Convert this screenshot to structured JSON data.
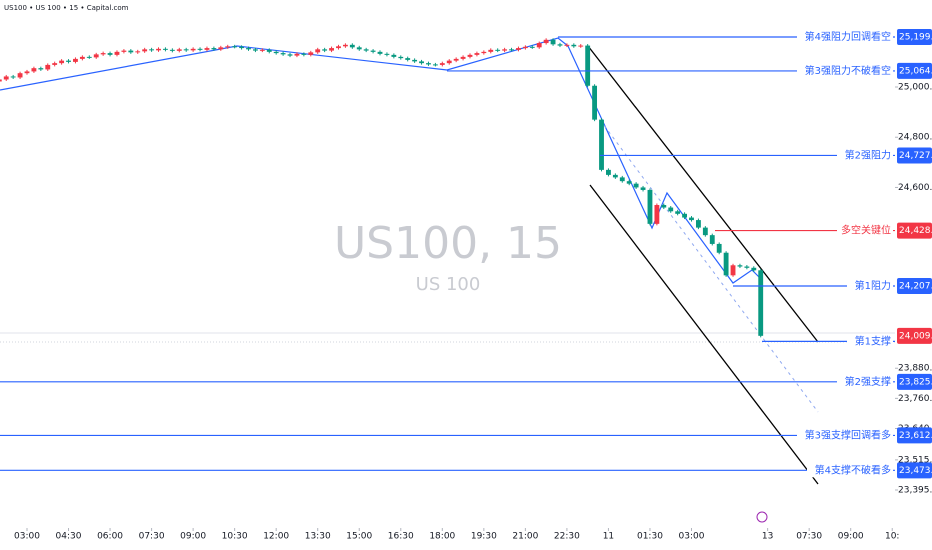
{
  "header": "US100 • US 100 • 15 • Capital.com",
  "chart_data": {
    "type": "candlestick",
    "watermark": "US100, 15",
    "watermark_subtitle": "US 100",
    "up_color": "#f23645",
    "down_color": "#089981",
    "open": [
      25022,
      25030,
      25042,
      25038,
      25055,
      25062,
      25075,
      25070,
      25088,
      25095,
      25105,
      25100,
      25112,
      25120,
      25118,
      25130,
      25135,
      25128,
      25140,
      25145,
      25138,
      25142,
      25150,
      25146,
      25152,
      25148,
      25144,
      25150,
      25146,
      25152,
      25148,
      25155,
      25150,
      25158,
      25162,
      25160,
      25155,
      25150,
      25145,
      25148,
      25140,
      25135,
      25130,
      25125,
      25132,
      25128,
      25138,
      25150,
      25145,
      25155,
      25162,
      25168,
      25158,
      25150,
      25145,
      25140,
      25132,
      25128,
      25120,
      25115,
      25108,
      25102,
      25095,
      25090,
      25088,
      25095,
      25105,
      25112,
      25120,
      25128,
      25135,
      25140,
      25148,
      25145,
      25150,
      25148,
      25155,
      25160,
      25158,
      25175,
      25188,
      25170,
      25165,
      25168,
      25162,
      25165,
      25005,
      24870,
      24670,
      24650,
      24640,
      24625,
      24615,
      24600,
      24590,
      24455,
      24530,
      24520,
      24505,
      24495,
      24480,
      24470,
      24440,
      24410,
      24375,
      24340,
      24250,
      24290,
      24285,
      24280,
      24270
    ],
    "high": [
      25036,
      25048,
      25048,
      25061,
      25068,
      25081,
      25081,
      25094,
      25101,
      25111,
      25111,
      25118,
      25126,
      25126,
      25136,
      25141,
      25141,
      25146,
      25151,
      25151,
      25148,
      25156,
      25156,
      25158,
      25158,
      25154,
      25156,
      25156,
      25158,
      25158,
      25161,
      25161,
      25164,
      25168,
      25168,
      25166,
      25161,
      25156,
      25154,
      25154,
      25146,
      25141,
      25136,
      25138,
      25138,
      25144,
      25156,
      25156,
      25161,
      25168,
      25174,
      25174,
      25164,
      25156,
      25151,
      25146,
      25138,
      25134,
      25126,
      25121,
      25114,
      25108,
      25101,
      25096,
      25101,
      25111,
      25118,
      25126,
      25134,
      25141,
      25146,
      25154,
      25154,
      25156,
      25156,
      25161,
      25166,
      25166,
      25181,
      25194,
      25194,
      25176,
      25174,
      25174,
      25171,
      25171,
      25011,
      24876,
      24676,
      24656,
      24646,
      24631,
      24621,
      24606,
      24596,
      24536,
      24536,
      24526,
      24511,
      24501,
      24486,
      24476,
      24446,
      24416,
      24381,
      24346,
      24296,
      24296,
      24291,
      24286,
      24276
    ],
    "low": [
      25016,
      25024,
      25032,
      25032,
      25049,
      25056,
      25064,
      25064,
      25082,
      25089,
      25094,
      25094,
      25106,
      25112,
      25112,
      25124,
      25122,
      25122,
      25134,
      25132,
      25132,
      25136,
      25140,
      25140,
      25142,
      25138,
      25138,
      25140,
      25140,
      25142,
      25142,
      25144,
      25144,
      25152,
      25154,
      25149,
      25144,
      25139,
      25139,
      25134,
      25129,
      25124,
      25119,
      25119,
      25122,
      25122,
      25132,
      25139,
      25139,
      25149,
      25156,
      25152,
      25144,
      25139,
      25134,
      25126,
      25122,
      25114,
      25109,
      25102,
      25096,
      25089,
      25084,
      25082,
      25082,
      25089,
      25099,
      25106,
      25114,
      25122,
      25129,
      25134,
      25139,
      25139,
      25142,
      25142,
      25149,
      25152,
      25152,
      25169,
      25164,
      25159,
      25159,
      25156,
      25156,
      24999,
      24864,
      24664,
      24644,
      24634,
      24619,
      24609,
      24594,
      24584,
      24449,
      24449,
      24514,
      24499,
      24489,
      24474,
      24464,
      24434,
      24404,
      24369,
      24334,
      24244,
      24244,
      24279,
      24274,
      24264,
      24003
    ],
    "close": [
      25030,
      25042,
      25038,
      25055,
      25062,
      25075,
      25070,
      25088,
      25095,
      25105,
      25100,
      25112,
      25120,
      25118,
      25130,
      25135,
      25128,
      25140,
      25145,
      25138,
      25142,
      25150,
      25146,
      25152,
      25148,
      25144,
      25150,
      25146,
      25152,
      25148,
      25155,
      25150,
      25158,
      25162,
      25160,
      25155,
      25150,
      25145,
      25148,
      25140,
      25135,
      25130,
      25125,
      25132,
      25128,
      25138,
      25150,
      25145,
      25155,
      25162,
      25168,
      25158,
      25150,
      25145,
      25140,
      25132,
      25128,
      25120,
      25115,
      25108,
      25102,
      25095,
      25090,
      25088,
      25095,
      25105,
      25112,
      25120,
      25128,
      25135,
      25140,
      25148,
      25145,
      25150,
      25148,
      25155,
      25160,
      25158,
      25175,
      25188,
      25170,
      25165,
      25168,
      25162,
      25165,
      25005,
      24870,
      24670,
      24650,
      24640,
      24625,
      24615,
      24600,
      24590,
      24455,
      24530,
      24520,
      24505,
      24495,
      24480,
      24470,
      24440,
      24410,
      24375,
      24340,
      24250,
      24290,
      24285,
      24280,
      24270,
      24009
    ],
    "xlim": [
      0.1,
      129.4
    ],
    "xticks": [
      {
        "value": 4,
        "label": "03:00"
      },
      {
        "value": 10,
        "label": "04:30"
      },
      {
        "value": 16,
        "label": "06:00"
      },
      {
        "value": 22,
        "label": "07:30"
      },
      {
        "value": 28,
        "label": "09:00"
      },
      {
        "value": 34,
        "label": "10:30"
      },
      {
        "value": 40,
        "label": "12:00"
      },
      {
        "value": 46,
        "label": "13:30"
      },
      {
        "value": 52,
        "label": "15:00"
      },
      {
        "value": 58,
        "label": "16:30"
      },
      {
        "value": 64,
        "label": "18:00"
      },
      {
        "value": 70,
        "label": "19:30"
      },
      {
        "value": 76,
        "label": "21:00"
      },
      {
        "value": 82,
        "label": "22:30"
      },
      {
        "value": 88,
        "label": "11"
      },
      {
        "value": 94,
        "label": "01:30"
      },
      {
        "value": 100,
        "label": "03:00"
      },
      {
        "value": 111,
        "label": "13"
      },
      {
        "value": 117,
        "label": "07:30"
      },
      {
        "value": 123,
        "label": "09:00"
      },
      {
        "value": 129,
        "label": "10:"
      }
    ],
    "ylim": [
      23243.7,
      25346.5
    ],
    "yticks": [
      {
        "value": 25000,
        "label": "25,000.0"
      },
      {
        "value": 24800,
        "label": "24,800.0"
      },
      {
        "value": 24600,
        "label": "24,600.0"
      },
      {
        "value": 23880,
        "label": "23,880.0"
      },
      {
        "value": 23760,
        "label": "23,760.0"
      },
      {
        "value": 23640,
        "label": "23,640.0"
      },
      {
        "value": 23515,
        "label": "23,515.0"
      },
      {
        "value": 23395,
        "label": "23,395.0"
      }
    ],
    "last_price": {
      "value": 24009.0,
      "label": "24,009.0",
      "color": "#f23645"
    },
    "levels": [
      {
        "name": "第4强阻力回调看空",
        "value": 25199.2,
        "value_label": "25,199.2",
        "color": "#2962ff"
      },
      {
        "name": "第3强阻力不破看空",
        "value": 25064.0,
        "value_label": "25,064.0",
        "color": "#2962ff"
      },
      {
        "name": "第2强阻力",
        "value": 24727.4,
        "value_label": "24,727.4",
        "color": "#2962ff"
      },
      {
        "name": "多空关键位",
        "value": 24428.2,
        "value_label": "24,428.2",
        "color": "#f23645"
      },
      {
        "name": "第1阻力",
        "value": 24207.4,
        "value_label": "24,207.4",
        "color": "#2962ff"
      },
      {
        "name": "第1支撑",
        "value": 23987.0,
        "color": "#2962ff"
      },
      {
        "name": "第2强支撑",
        "value": 23825.9,
        "value_label": "23,825.9",
        "color": "#2962ff"
      },
      {
        "name": "第3强支撑回调看多",
        "value": 23612.4,
        "value_label": "23,612.4",
        "color": "#2962ff"
      },
      {
        "name": "第4支撑不破看多",
        "value": 23473.4,
        "value_label": "23,473.4",
        "color": "#2962ff"
      }
    ]
  }
}
